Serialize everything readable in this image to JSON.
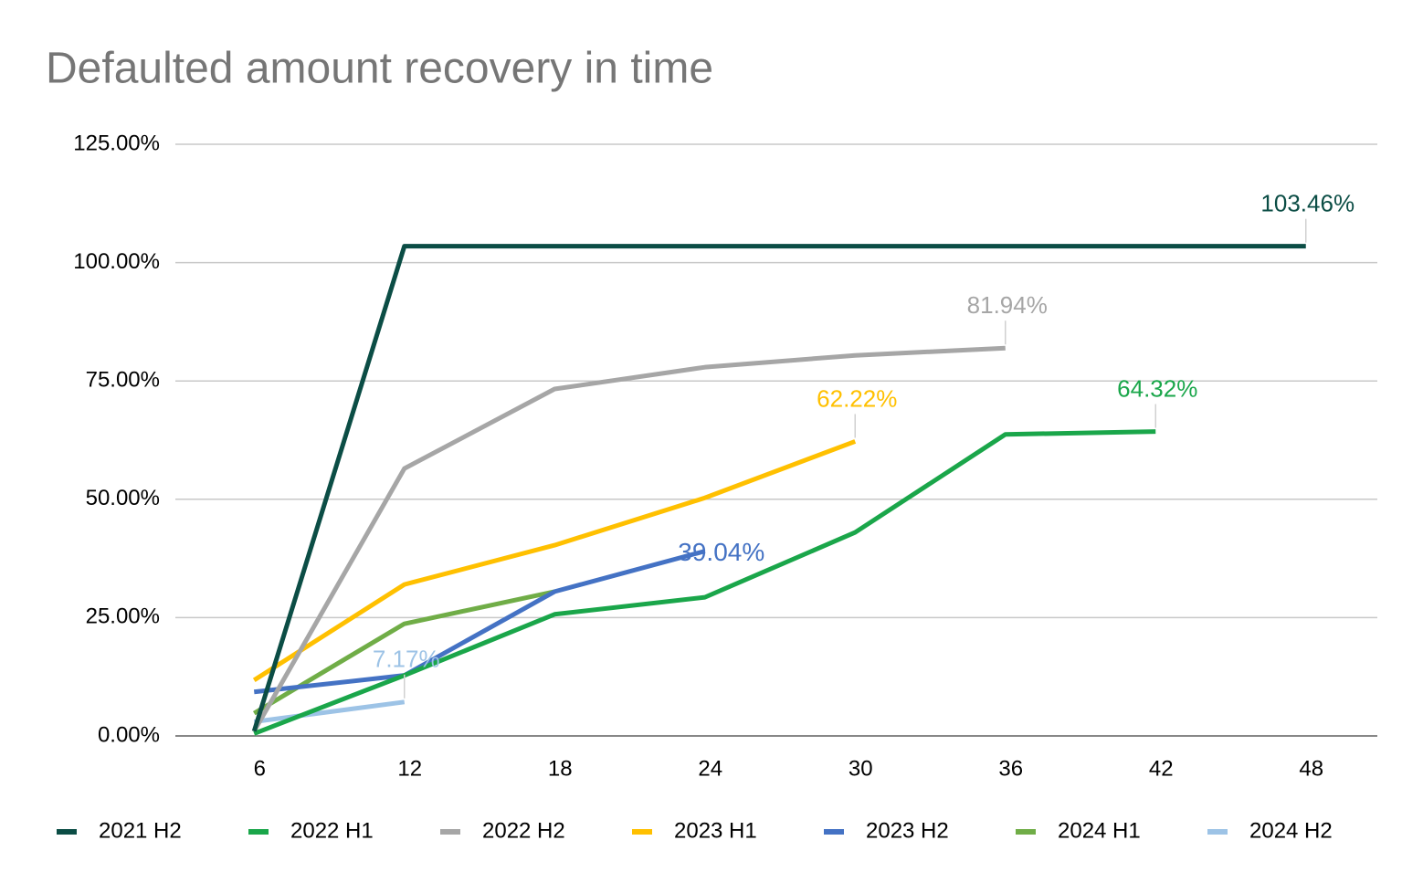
{
  "chart_data": {
    "type": "line",
    "title": "Defaulted amount recovery in time",
    "categories": [
      "6",
      "12",
      "18",
      "24",
      "30",
      "36",
      "42",
      "48"
    ],
    "series": [
      {
        "name": "2021 H2",
        "color": "#0b4d45",
        "values": [
          1,
          103.46,
          103.46,
          103.46,
          103.46,
          103.46,
          103.46,
          103.46
        ],
        "value_labels": [
          null,
          null,
          null,
          null,
          null,
          null,
          null,
          "103.46%"
        ]
      },
      {
        "name": "2022 H1",
        "color": "#1aa64a",
        "values": [
          0.5,
          12.8,
          25.7,
          29.3,
          43,
          63.7,
          64.32,
          null
        ],
        "value_labels": [
          null,
          null,
          null,
          null,
          null,
          null,
          "64.32%",
          null
        ]
      },
      {
        "name": "2022 H2",
        "color": "#a6a6a6",
        "values": [
          1,
          56.5,
          73.3,
          77.9,
          80.4,
          81.94,
          null,
          null
        ],
        "value_labels": [
          null,
          null,
          null,
          null,
          null,
          "81.94%",
          null,
          null
        ]
      },
      {
        "name": "2023 H1",
        "color": "#ffc000",
        "values": [
          11.8,
          32,
          40.3,
          50.3,
          62.22,
          null,
          null,
          null
        ],
        "value_labels": [
          null,
          null,
          null,
          null,
          "62.22%",
          null,
          null,
          null
        ]
      },
      {
        "name": "2023 H2",
        "color": "#4472c4",
        "values": [
          9.3,
          12.8,
          30.5,
          39.04,
          null,
          null,
          null,
          null
        ],
        "value_labels": [
          null,
          null,
          null,
          "39.04%",
          null,
          null,
          null,
          null
        ]
      },
      {
        "name": "2024 H1",
        "color": "#70ad47",
        "values": [
          4.8,
          23.7,
          30.5,
          null,
          null,
          null,
          null,
          null
        ],
        "value_labels": [
          null,
          null,
          null,
          null,
          null,
          null,
          null,
          null
        ]
      },
      {
        "name": "2024 H2",
        "color": "#9dc3e6",
        "values": [
          3,
          7.17,
          null,
          null,
          null,
          null,
          null,
          null
        ],
        "value_labels": [
          null,
          "7.17%",
          null,
          null,
          null,
          null,
          null,
          null
        ]
      }
    ],
    "ylim": [
      0,
      125
    ],
    "yticks": [
      {
        "value": 0,
        "label": "0.00%"
      },
      {
        "value": 25,
        "label": "25.00%"
      },
      {
        "value": 50,
        "label": "50.00%"
      },
      {
        "value": 75,
        "label": "75.00%"
      },
      {
        "value": 100,
        "label": "100.00%"
      },
      {
        "value": 125,
        "label": "125.00%"
      }
    ],
    "grid": true,
    "legend": "bottom"
  }
}
